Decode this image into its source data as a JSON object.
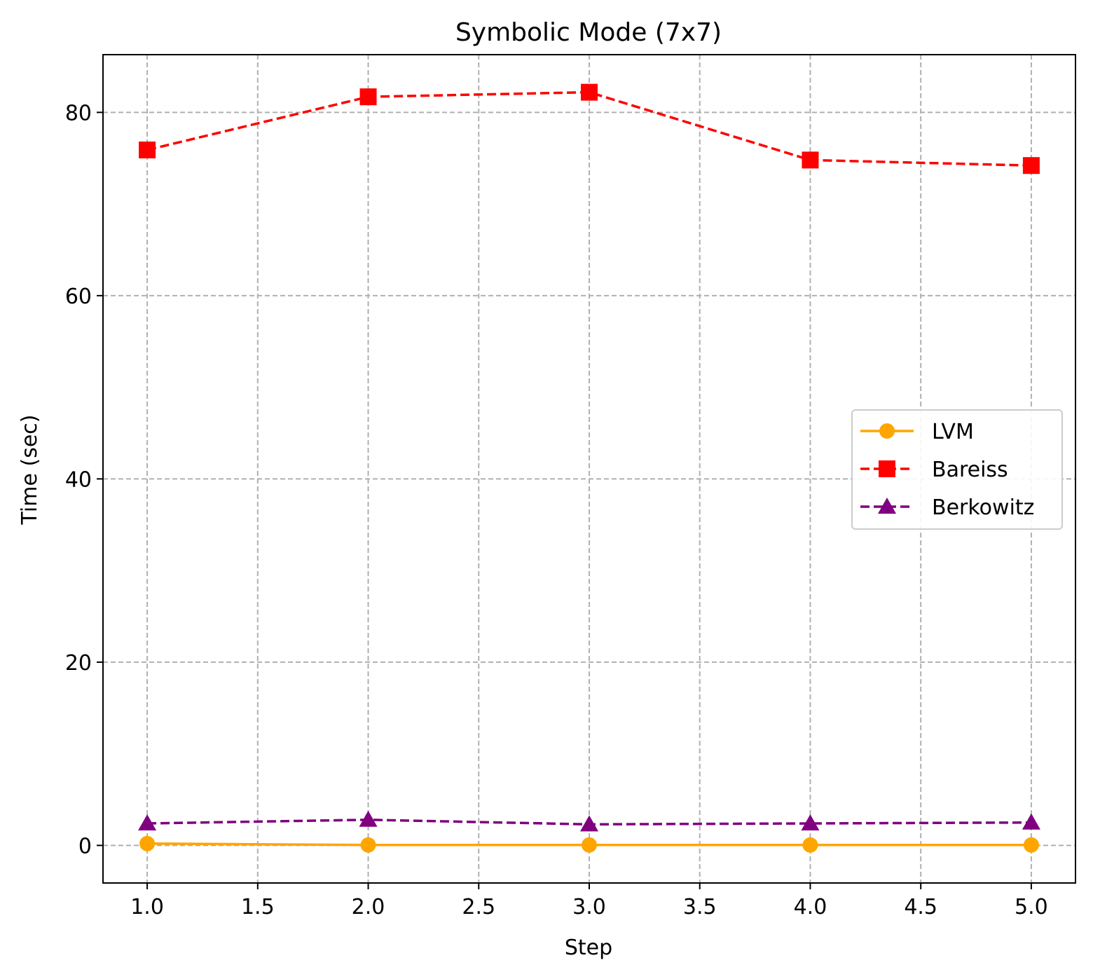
{
  "chart_data": {
    "type": "line",
    "title": "Symbolic Mode (7x7)",
    "xlabel": "Step",
    "ylabel": "Time (sec)",
    "xlim": [
      0.8,
      5.2
    ],
    "ylim": [
      -4.1,
      86.3
    ],
    "x_ticks": [
      1.0,
      1.5,
      2.0,
      2.5,
      3.0,
      3.5,
      4.0,
      4.5,
      5.0
    ],
    "x_tick_labels": [
      "1.0",
      "1.5",
      "2.0",
      "2.5",
      "3.0",
      "3.5",
      "4.0",
      "4.5",
      "5.0"
    ],
    "y_ticks": [
      0,
      20,
      40,
      60,
      80
    ],
    "y_tick_labels": [
      "0",
      "20",
      "40",
      "60",
      "80"
    ],
    "grid": true,
    "legend_position": "center-right",
    "x": [
      1,
      2,
      3,
      4,
      5
    ],
    "series": [
      {
        "name": "LVM",
        "values": [
          0.2,
          0.05,
          0.05,
          0.05,
          0.05
        ],
        "color": "#ffa500",
        "marker": "circle",
        "line_style": "solid"
      },
      {
        "name": "Bareiss",
        "values": [
          75.9,
          81.7,
          82.2,
          74.8,
          74.2
        ],
        "color": "#ff0000",
        "marker": "square",
        "line_style": "dashed"
      },
      {
        "name": "Berkowitz",
        "values": [
          2.4,
          2.8,
          2.3,
          2.4,
          2.5
        ],
        "color": "#800080",
        "marker": "triangle",
        "line_style": "dashed"
      }
    ]
  }
}
